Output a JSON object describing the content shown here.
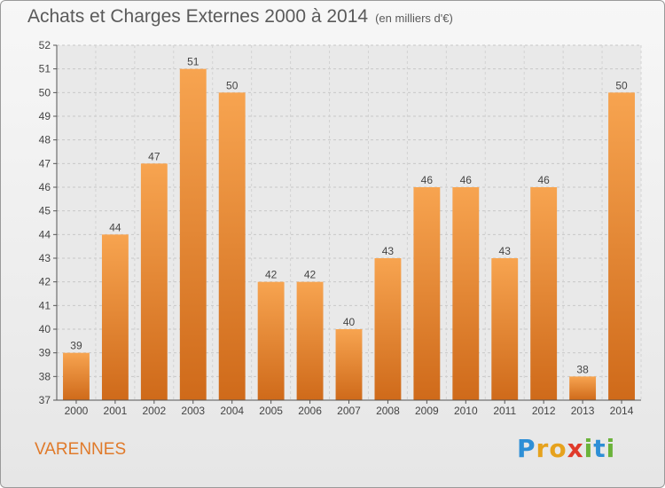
{
  "header": {
    "title": "Achats et Charges Externes 2000 à 2014",
    "unit": "(en milliers d'€)"
  },
  "footer": {
    "town": "VARENNES",
    "brand": "Proxiti"
  },
  "colors": {
    "bar_light": "#f7a450",
    "bar_dark": "#cf6a1a",
    "town": "#e07a2a",
    "axis": "#555555"
  },
  "chart_data": {
    "type": "bar",
    "title": "Achats et Charges Externes 2000 à 2014",
    "subtitle": "(en milliers d'€)",
    "categories": [
      "2000",
      "2001",
      "2002",
      "2003",
      "2004",
      "2005",
      "2006",
      "2007",
      "2008",
      "2009",
      "2010",
      "2011",
      "2012",
      "2013",
      "2014"
    ],
    "values": [
      39,
      44,
      47,
      51,
      50,
      42,
      42,
      40,
      43,
      46,
      46,
      43,
      46,
      38,
      50
    ],
    "ylim": [
      37,
      52
    ],
    "yticks": [
      37,
      38,
      39,
      40,
      41,
      42,
      43,
      44,
      45,
      46,
      47,
      48,
      49,
      50,
      51,
      52
    ],
    "grid": true,
    "legend": "none",
    "xlabel": "",
    "ylabel": ""
  }
}
